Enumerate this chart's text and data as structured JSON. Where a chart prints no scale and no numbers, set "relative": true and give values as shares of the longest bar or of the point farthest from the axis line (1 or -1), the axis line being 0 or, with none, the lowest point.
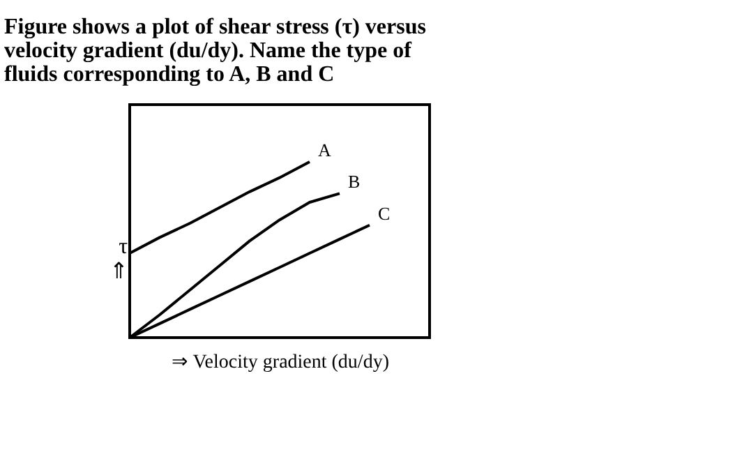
{
  "chart_data": {
    "type": "line",
    "relative": true,
    "title": "Figure shows a plot of shear stress (τ) versus velocity gradient (du/dy). Name the type of fluids corresponding to A, B and C",
    "xlabel": "⇒ Velocity gradient (du/dy)",
    "ylabel": "τ\n⇑",
    "categories": [
      null,
      null,
      null,
      null,
      null,
      null,
      null,
      null,
      null,
      null,
      null
    ],
    "tick_labels": false,
    "grid": false,
    "legend": false,
    "marker": "none",
    "line_style": "solid",
    "series": [
      {
        "name": "A",
        "color": "#000000",
        "values": [
          0.48,
          0.57,
          0.65,
          0.74,
          0.83,
          0.91,
          1,
          null,
          null,
          null,
          null
        ]
      },
      {
        "name": "B",
        "color": "#000000",
        "values": [
          0,
          0.13,
          0.27,
          0.41,
          0.55,
          0.67,
          0.77,
          0.82,
          null,
          null,
          null
        ]
      },
      {
        "name": "C",
        "color": "#000000",
        "values": [
          0,
          0.08,
          0.16,
          0.24,
          0.32,
          0.4,
          0.48,
          0.56,
          0.64,
          null,
          null
        ]
      }
    ]
  }
}
